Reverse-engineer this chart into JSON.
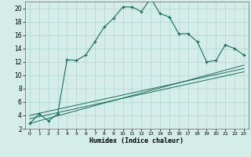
{
  "title": "",
  "xlabel": "Humidex (Indice chaleur)",
  "xlim": [
    -0.5,
    23.5
  ],
  "ylim": [
    2,
    21
  ],
  "yticks": [
    2,
    4,
    6,
    8,
    10,
    12,
    14,
    16,
    18,
    20
  ],
  "xticks": [
    0,
    1,
    2,
    3,
    4,
    5,
    6,
    7,
    8,
    9,
    10,
    11,
    12,
    13,
    14,
    15,
    16,
    17,
    18,
    19,
    20,
    21,
    22,
    23
  ],
  "bg_color": "#d4ede8",
  "line_color": "#1a6b5a",
  "grid_color": "#b0d8d0",
  "main_line": [
    [
      0,
      2.8
    ],
    [
      1,
      4.2
    ],
    [
      2,
      3.2
    ],
    [
      3,
      4.2
    ],
    [
      4,
      12.3
    ],
    [
      5,
      12.2
    ],
    [
      6,
      13.0
    ],
    [
      7,
      15.0
    ],
    [
      8,
      17.2
    ],
    [
      9,
      18.5
    ],
    [
      10,
      20.2
    ],
    [
      11,
      20.2
    ],
    [
      12,
      19.5
    ],
    [
      13,
      21.5
    ],
    [
      14,
      19.2
    ],
    [
      15,
      18.7
    ],
    [
      16,
      16.2
    ],
    [
      17,
      16.2
    ],
    [
      18,
      15.0
    ],
    [
      19,
      12.0
    ],
    [
      20,
      12.2
    ],
    [
      21,
      14.5
    ],
    [
      22,
      14.0
    ],
    [
      23,
      13.0
    ]
  ],
  "ref_line1": [
    [
      0,
      2.8
    ],
    [
      23,
      11.5
    ]
  ],
  "ref_line2": [
    [
      0,
      3.5
    ],
    [
      23,
      10.5
    ]
  ],
  "ref_line3": [
    [
      0,
      4.0
    ],
    [
      23,
      11.0
    ]
  ]
}
